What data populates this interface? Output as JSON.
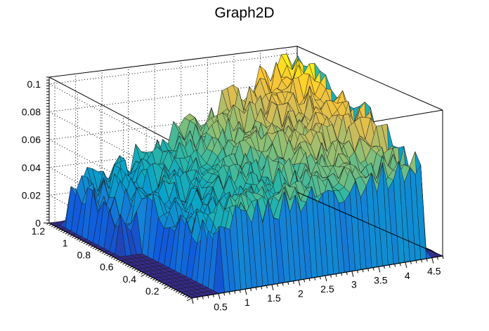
{
  "chart_data": {
    "type": "surface",
    "title": "Graph2D",
    "xlabel": "",
    "ylabel": "",
    "zlabel": "",
    "x_ticks": [
      "0.5",
      "1",
      "1.5",
      "2",
      "2.5",
      "3",
      "3.5",
      "4",
      "4.5"
    ],
    "y_ticks": [
      "0.2",
      "0.4",
      "0.6",
      "0.8",
      "1",
      "1.2"
    ],
    "z_ticks": [
      "0",
      "0.02",
      "0.04",
      "0.06",
      "0.08",
      "0.1"
    ],
    "x_range": [
      0.0,
      4.7
    ],
    "y_range": [
      0.0,
      1.25
    ],
    "z_range": [
      0.0,
      0.105
    ],
    "grid": true,
    "colormap": [
      "#352a87",
      "#0f5cdd",
      "#1481d6",
      "#06a4ca",
      "#2eb7a4",
      "#87bf77",
      "#d1bb59",
      "#fec832",
      "#f9fb0e"
    ],
    "surface_description_points": [
      {
        "x": 0.1,
        "y": 1.15,
        "z": 0.003
      },
      {
        "x": 0.3,
        "y": 1.05,
        "z": 0.03
      },
      {
        "x": 1.0,
        "y": 1.1,
        "z": 0.045
      },
      {
        "x": 2.0,
        "y": 1.1,
        "z": 0.065
      },
      {
        "x": 3.0,
        "y": 1.1,
        "z": 0.09
      },
      {
        "x": 3.5,
        "y": 1.1,
        "z": 0.1
      },
      {
        "x": 4.3,
        "y": 1.0,
        "z": 0.09
      },
      {
        "x": 0.6,
        "y": 0.6,
        "z": 0.02
      },
      {
        "x": 0.85,
        "y": 0.5,
        "z": 0.038
      },
      {
        "x": 1.0,
        "y": 0.4,
        "z": 0.045
      },
      {
        "x": 1.5,
        "y": 0.4,
        "z": 0.045
      },
      {
        "x": 3.0,
        "y": 0.4,
        "z": 0.06
      },
      {
        "x": 4.0,
        "y": 0.4,
        "z": 0.065
      },
      {
        "x": 4.5,
        "y": 0.3,
        "z": 0.0
      },
      {
        "x": 0.7,
        "y": 0.1,
        "z": 0.0
      }
    ]
  }
}
